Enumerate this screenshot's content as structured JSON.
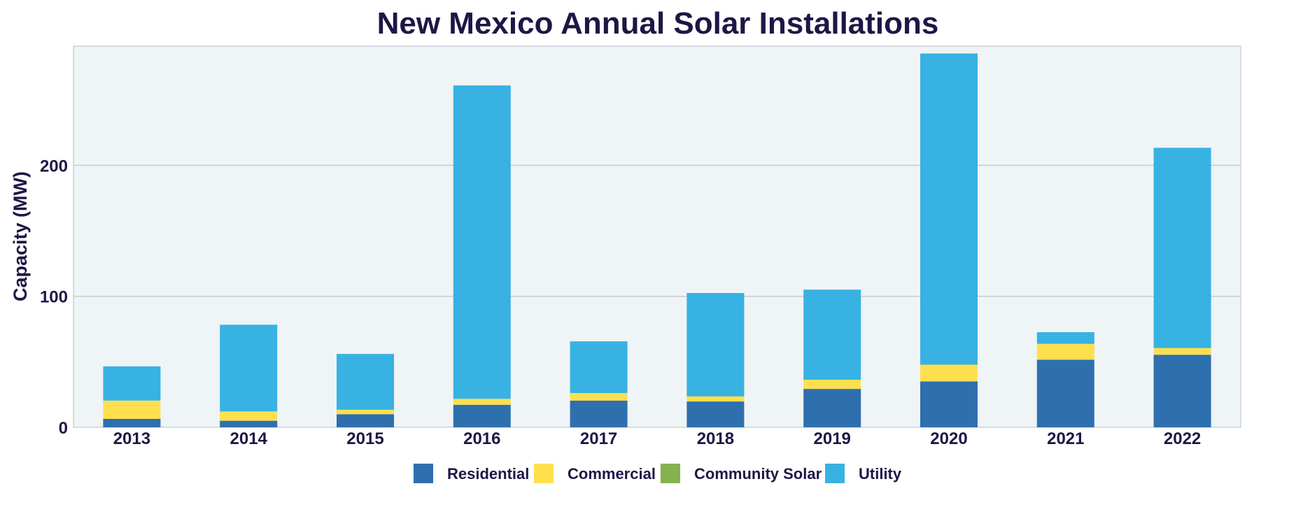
{
  "chart_data": {
    "type": "bar",
    "stacked": true,
    "title": "New Mexico Annual Solar Installations",
    "xlabel": "",
    "ylabel": "Capacity (MW)",
    "ylim": [
      0,
      291
    ],
    "yticks": [
      0,
      100,
      200
    ],
    "grid": true,
    "legend_position": "bottom",
    "categories": [
      "2013",
      "2014",
      "2015",
      "2016",
      "2017",
      "2018",
      "2019",
      "2020",
      "2021",
      "2022"
    ],
    "series": [
      {
        "name": "Residential",
        "color": "#2e6fad",
        "values": [
          6.4,
          5.0,
          10.0,
          17.2,
          20.4,
          19.7,
          29.3,
          35.0,
          51.6,
          55.4
        ]
      },
      {
        "name": "Commercial",
        "color": "#fee04e",
        "values": [
          14.0,
          7.1,
          3.4,
          4.5,
          5.7,
          3.9,
          7.0,
          12.8,
          12.1,
          5.1
        ]
      },
      {
        "name": "Community Solar",
        "color": "#85b14f",
        "values": [
          0,
          0,
          0,
          0,
          0,
          0,
          0,
          0,
          0,
          0
        ]
      },
      {
        "name": "Utility",
        "color": "#37b2e3",
        "values": [
          26.1,
          66.2,
          42.6,
          239.3,
          39.5,
          78.9,
          68.8,
          237.6,
          8.9,
          152.9
        ]
      }
    ],
    "colors": {
      "plot_background": "#eff4f6",
      "grid": "#c8ccd0",
      "text": "#1f1646"
    }
  }
}
